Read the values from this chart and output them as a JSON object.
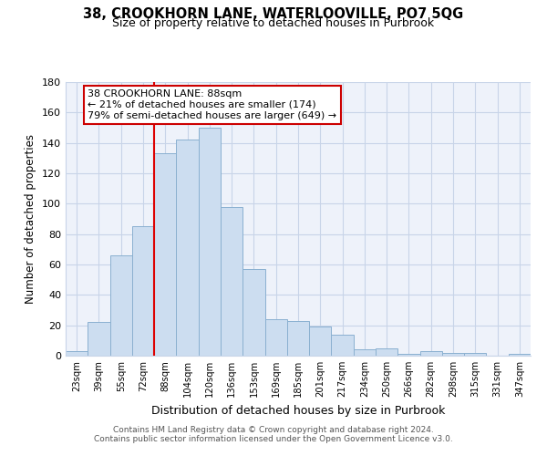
{
  "title": "38, CROOKHORN LANE, WATERLOOVILLE, PO7 5QG",
  "subtitle": "Size of property relative to detached houses in Purbrook",
  "xlabel": "Distribution of detached houses by size in Purbrook",
  "ylabel": "Number of detached properties",
  "bar_labels": [
    "23sqm",
    "39sqm",
    "55sqm",
    "72sqm",
    "88sqm",
    "104sqm",
    "120sqm",
    "136sqm",
    "153sqm",
    "169sqm",
    "185sqm",
    "201sqm",
    "217sqm",
    "234sqm",
    "250sqm",
    "266sqm",
    "282sqm",
    "298sqm",
    "315sqm",
    "331sqm",
    "347sqm"
  ],
  "bar_values": [
    3,
    22,
    66,
    85,
    133,
    142,
    150,
    98,
    57,
    24,
    23,
    19,
    14,
    4,
    5,
    1,
    3,
    2,
    2,
    0,
    1
  ],
  "bar_color": "#ccddf0",
  "bar_edge_color": "#8ab0d0",
  "vline_color": "#dd0000",
  "annotation_text": "38 CROOKHORN LANE: 88sqm\n← 21% of detached houses are smaller (174)\n79% of semi-detached houses are larger (649) →",
  "ylim": [
    0,
    180
  ],
  "yticks": [
    0,
    20,
    40,
    60,
    80,
    100,
    120,
    140,
    160,
    180
  ],
  "footer_line1": "Contains HM Land Registry data © Crown copyright and database right 2024.",
  "footer_line2": "Contains public sector information licensed under the Open Government Licence v3.0.",
  "background_color": "#ffffff",
  "grid_color": "#c8d4e8",
  "plot_bg_color": "#eef2fa"
}
